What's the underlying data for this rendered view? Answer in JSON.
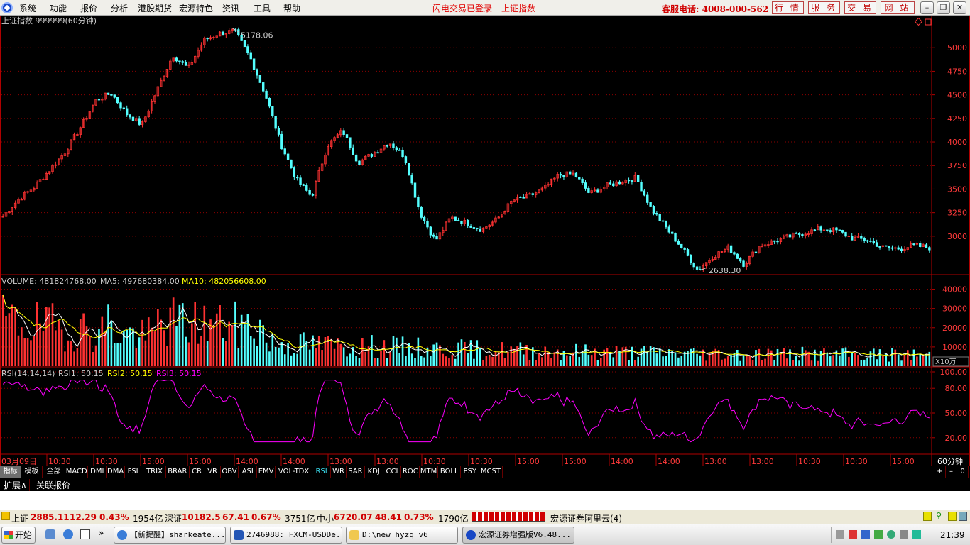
{
  "menu": [
    "系统",
    "功能",
    "报价",
    "分析",
    "港股期货",
    "宏源特色",
    "资讯",
    "工具",
    "帮助"
  ],
  "menu_status": [
    "闪电交易已登录",
    "上证指数"
  ],
  "hotline": "客服电话: 4008-000-562",
  "top_buttons": [
    "行 情",
    "服 务",
    "交 易",
    "网 站"
  ],
  "window_buttons": [
    "–",
    "❐",
    "✕"
  ],
  "chart": {
    "symbol": "上证指数 999999(60分钟)",
    "high_label": "5178.06",
    "low_label": "2638.30",
    "price_ticks": [
      "5000",
      "4750",
      "4500",
      "4250",
      "4000",
      "3750",
      "3500",
      "3250",
      "3000"
    ],
    "volume_title": "VOLUME: 481824768.00",
    "ma5_title": "MA5: 497680384.00",
    "ma10_title": "MA10: 482056608.00",
    "volume_ticks": [
      "40000",
      "30000",
      "20000",
      "10000"
    ],
    "volume_unit": "X10万",
    "rsi_title": "RSI(14,14,14)",
    "rsi1": "RSI1: 50.15",
    "rsi2": "RSI2: 50.15",
    "rsi3": "RSI3: 50.15",
    "rsi_ticks": [
      "100.00",
      "80.00",
      "50.00",
      "20.00"
    ],
    "x_labels": [
      "03月09日",
      "10:30",
      "10:30",
      "15:00",
      "15:00",
      "14:00",
      "14:00",
      "13:00",
      "13:00",
      "10:30",
      "10:30",
      "15:00",
      "15:00",
      "14:00",
      "14:00",
      "13:00",
      "13:00",
      "10:30",
      "10:30",
      "15:00"
    ],
    "period": "60分钟",
    "colors": {
      "up": "#ff3232",
      "down": "#54ffff",
      "ma5": "#ffffff",
      "ma10": "#ffff00",
      "rsi": "#ff00ff",
      "axis": "#b00000",
      "grid": "#8a0000"
    }
  },
  "chart_data": {
    "type": "line",
    "title": "上证指数 999999(60分钟)",
    "ylim": [
      2600,
      5250
    ],
    "series": [
      {
        "name": "上证指数",
        "values": [
          3210,
          3390,
          3520,
          3700,
          3890,
          4150,
          4440,
          4520,
          4300,
          4180,
          4560,
          4920,
          4780,
          5080,
          5150,
          5178,
          4900,
          4500,
          3980,
          3600,
          3420,
          3960,
          4120,
          3780,
          3880,
          4000,
          3850,
          3250,
          2950,
          3200,
          3140,
          3070,
          3180,
          3380,
          3420,
          3500,
          3650,
          3660,
          3450,
          3530,
          3580,
          3620,
          3290,
          3080,
          2870,
          2638,
          2790,
          2880,
          2700,
          2900,
          2950,
          3000,
          3040,
          3080,
          3060,
          2980,
          2960,
          2880,
          2870,
          2900,
          2880
        ]
      }
    ],
    "volume": {
      "ylim": [
        0,
        45000
      ],
      "ticks": [
        10000,
        20000,
        30000,
        40000
      ],
      "unit": "X10万"
    },
    "rsi": {
      "ylim": [
        0,
        100
      ],
      "ticks": [
        20,
        50,
        80,
        100
      ]
    }
  },
  "tabs_row": {
    "first": [
      "指标",
      "模板",
      "全部"
    ],
    "indicators": [
      "MACD",
      "DMI",
      "DMA",
      "FSL",
      "TRIX",
      "BRAR",
      "CR",
      "VR",
      "OBV",
      "ASI",
      "EMV",
      "VOL-TDX",
      "RSI",
      "WR",
      "SAR",
      "KDJ",
      "CCI",
      "ROC",
      "MTM",
      "BOLL",
      "PSY",
      "MCST"
    ],
    "active": "RSI",
    "right": [
      "+",
      "–",
      "0"
    ]
  },
  "ext_row": [
    "扩展∧",
    "关联报价"
  ],
  "status": {
    "sh_name": "上证",
    "sh_val": "2885.11",
    "sh_chg": "12.29",
    "sh_pct": "0.43%",
    "sh_amt": "1954亿",
    "sz_name": "深证",
    "sz_val": "10182.5",
    "sz_chg": "67.41",
    "sz_pct": "0.67%",
    "sz_amt": "3751亿",
    "zx_name": "中小",
    "zx_val": "6720.07",
    "zx_chg": "48.41",
    "zx_pct": "0.73%",
    "zx_amt": "1790亿",
    "server": "宏源证券阿里云(4)"
  },
  "taskbar": {
    "start": "开始",
    "tasks": [
      "【新提醒】sharkeate...",
      "2746988: FXCM-USDDe...",
      "D:\\new_hyzq_v6",
      "宏源证券增强版V6.48..."
    ],
    "clock": "21:39"
  }
}
